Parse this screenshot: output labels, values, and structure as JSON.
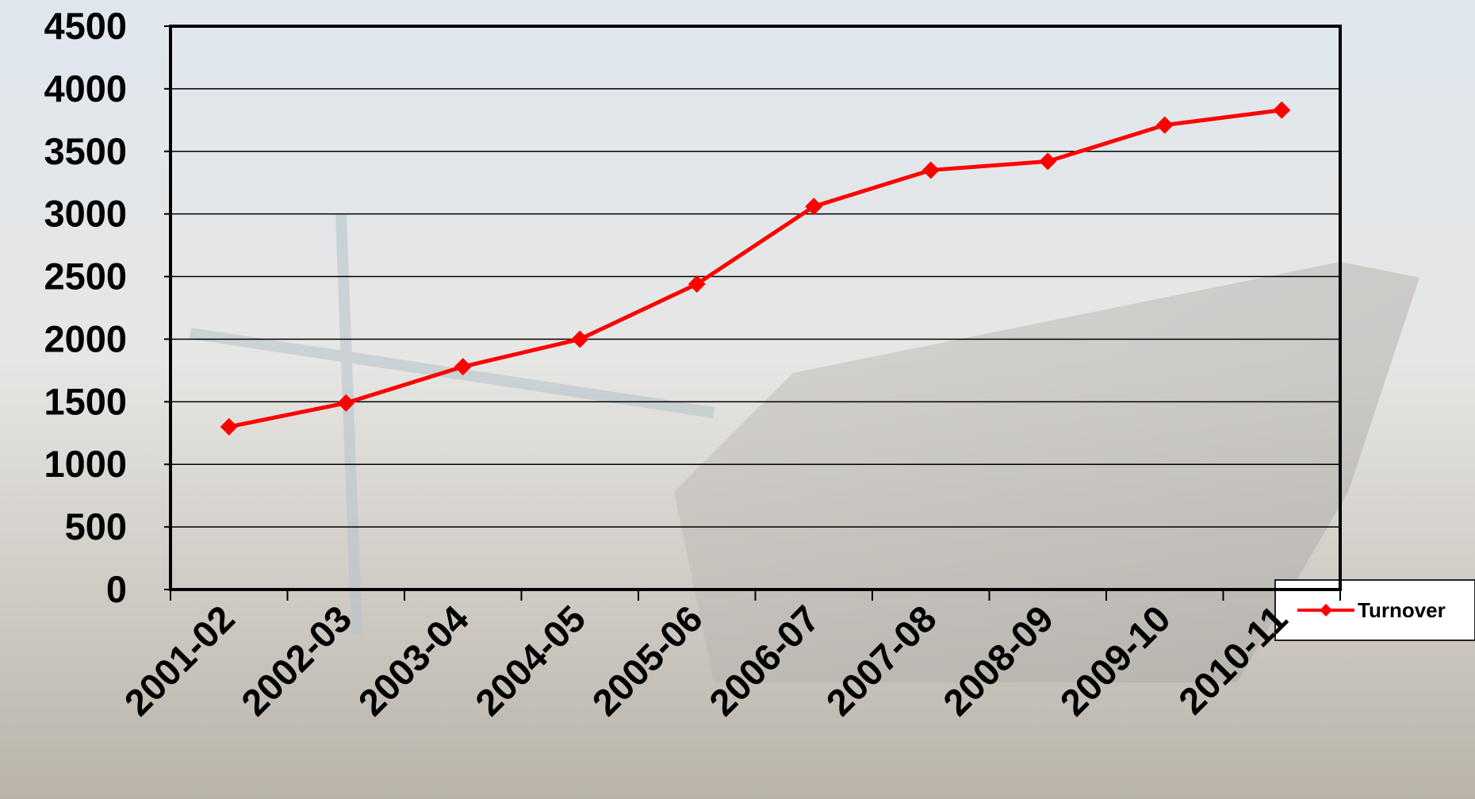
{
  "chart_data": {
    "type": "line",
    "categories": [
      "2001-02",
      "2002-03",
      "2003-04",
      "2004-05",
      "2005-06",
      "2006-07",
      "2007-08",
      "2008-09",
      "2009-10",
      "2010-11"
    ],
    "series": [
      {
        "name": "Turnover",
        "color": "#ff0000",
        "values": [
          1300,
          1490,
          1780,
          2000,
          2440,
          3060,
          3350,
          3420,
          3710,
          3830
        ]
      }
    ],
    "ylim": [
      0,
      4500
    ],
    "yticks": [
      0,
      500,
      1000,
      1500,
      2000,
      2500,
      3000,
      3500,
      4000,
      4500
    ],
    "grid": true,
    "legend": "right"
  }
}
